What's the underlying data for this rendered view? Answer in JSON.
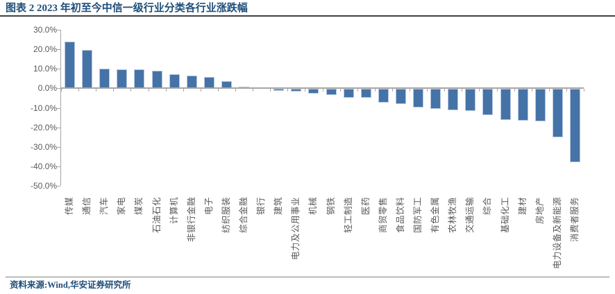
{
  "title": "图表 2 2023 年初至今中信一级行业分类各行业涨跌幅",
  "source_note": "资料来源:Wind,华安证券研究所",
  "colors": {
    "title_text": "#1f4e79",
    "bar_fill": "#4573a7",
    "bar_border": "#b5c7e0",
    "axis": "#a6a6a6",
    "tick_text": "#595959",
    "title_rule": "#3f3f3f",
    "source_rule": "#808080"
  },
  "chart_data": {
    "type": "bar",
    "title": "2023 年初至今中信一级行业分类各行业涨跌幅",
    "categories": [
      "传媒",
      "通信",
      "汽车",
      "家电",
      "煤炭",
      "石油石化",
      "计算机",
      "非银行金融",
      "电子",
      "纺织服装",
      "综合金融",
      "银行",
      "建筑",
      "电力及公用事业",
      "机械",
      "钢铁",
      "轻工制造",
      "医药",
      "商贸零售",
      "食品饮料",
      "国防军工",
      "有色金属",
      "农林牧渔",
      "交通运输",
      "综合",
      "基础化工",
      "建材",
      "房地产",
      "电力设备及新能源",
      "消费者服务"
    ],
    "values": [
      24.0,
      19.6,
      10.0,
      9.8,
      9.7,
      8.9,
      7.3,
      6.6,
      5.8,
      3.8,
      0.8,
      0.6,
      -1.1,
      -1.2,
      -2.4,
      -3.2,
      -4.4,
      -4.6,
      -7.0,
      -7.6,
      -9.6,
      -10.2,
      -10.8,
      -11.2,
      -13.2,
      -15.9,
      -16.1,
      -16.6,
      -24.8,
      -37.6
    ],
    "unit": "%",
    "ylim": [
      -50,
      30
    ],
    "ytick_labels": [
      "30.0%",
      "20.0%",
      "10.0%",
      "0.0%",
      "-10.0%",
      "-20.0%",
      "-30.0%",
      "-40.0%",
      "-50.0%"
    ],
    "grid": false,
    "legend": null,
    "xlabel": "",
    "ylabel": ""
  }
}
